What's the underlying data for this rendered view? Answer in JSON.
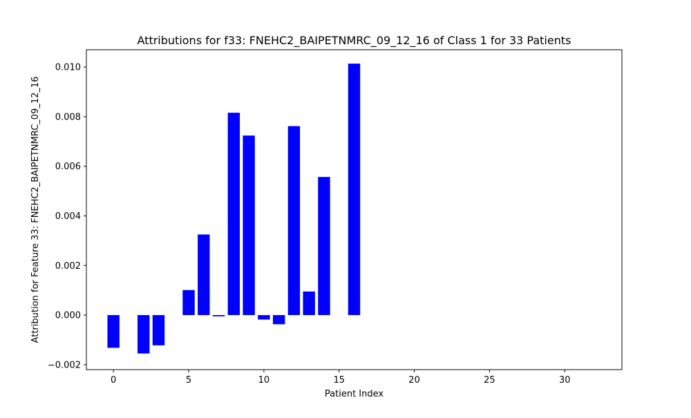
{
  "chart_data": {
    "type": "bar",
    "title": "Attributions for f33: FNEHC2_BAIPETNMRC_09_12_16 of Class 1 for 33 Patients",
    "xlabel": "Patient Index",
    "ylabel": "Attribution for Feature 33: FNEHC2_BAIPETNMRC_09_12_16",
    "x": [
      0,
      1,
      2,
      3,
      4,
      5,
      6,
      7,
      8,
      9,
      10,
      11,
      12,
      13,
      14,
      15,
      16,
      17,
      18,
      19,
      20,
      21,
      22,
      23,
      24,
      25,
      26,
      27,
      28,
      29,
      30,
      31,
      32
    ],
    "values": [
      -0.00132,
      0,
      -0.00155,
      -0.00122,
      0,
      0.00101,
      0.00325,
      -5e-05,
      0.00816,
      0.00724,
      -0.00018,
      -0.00037,
      0.00762,
      0.00095,
      0.00557,
      0,
      0.01014,
      0,
      0,
      0,
      0,
      0,
      0,
      0,
      0,
      0,
      0,
      0,
      0,
      0,
      0,
      0,
      0
    ],
    "xlim": [
      -1.8,
      33.8
    ],
    "ylim": [
      -0.0022,
      0.0107
    ],
    "x_ticks": [
      "0",
      "5",
      "10",
      "15",
      "20",
      "25",
      "30"
    ],
    "y_ticks": [
      "−0.002",
      "0.000",
      "0.002",
      "0.004",
      "0.006",
      "0.008",
      "0.010"
    ],
    "bar_color": "#0000ff",
    "grid": false,
    "legend": "none"
  }
}
